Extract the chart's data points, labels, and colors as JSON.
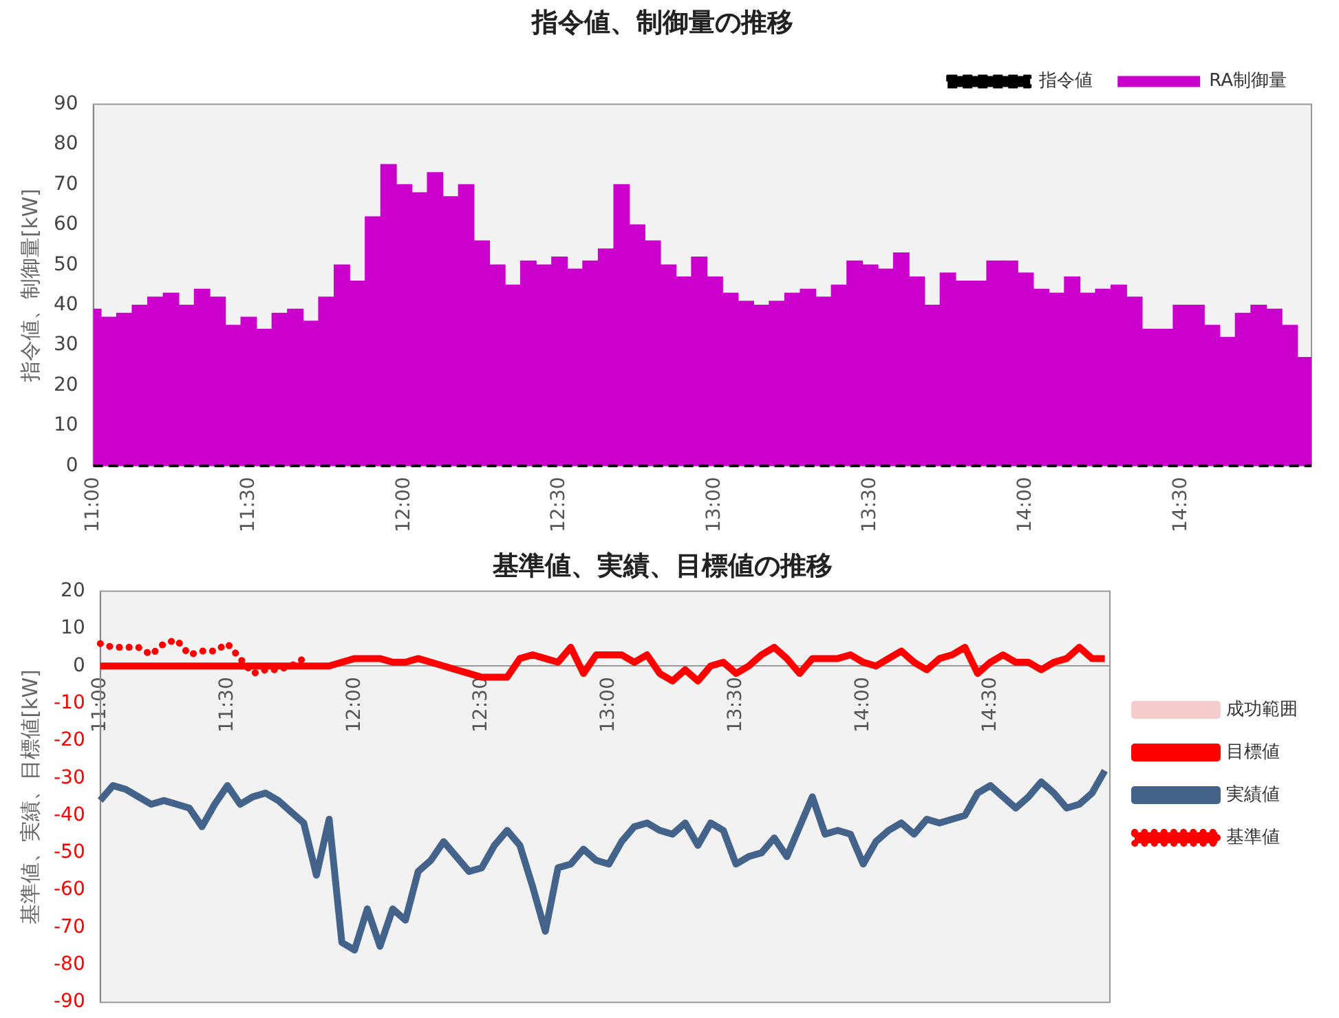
{
  "chart_data": [
    {
      "type": "bar",
      "title": "指令値、制御量の推移",
      "ylabel": "指令値、制御量[kW]",
      "legend": "top right",
      "grid": false,
      "xlim": [
        11,
        14.92
      ],
      "xticks": [
        {
          "value": 11,
          "label": "11:00"
        },
        {
          "value": 11.5,
          "label": "11:30"
        },
        {
          "value": 12,
          "label": "12:00"
        },
        {
          "value": 12.5,
          "label": "12:30"
        },
        {
          "value": 13,
          "label": "13:00"
        },
        {
          "value": 13.5,
          "label": "13:30"
        },
        {
          "value": 14,
          "label": "14:00"
        },
        {
          "value": 14.5,
          "label": "14:30"
        }
      ],
      "ylim": [
        0,
        90
      ],
      "yticks": [
        0,
        10,
        20,
        30,
        40,
        50,
        60,
        70,
        80,
        90
      ],
      "x": [
        11,
        11.05,
        11.1,
        11.15,
        11.2,
        11.25,
        11.3,
        11.35,
        11.4,
        11.45,
        11.5,
        11.55,
        11.6,
        11.65,
        11.7,
        11.75,
        11.8,
        11.85,
        11.9,
        11.95,
        12,
        12.05,
        12.1,
        12.15,
        12.2,
        12.25,
        12.3,
        12.35,
        12.4,
        12.45,
        12.5,
        12.55,
        12.6,
        12.65,
        12.7,
        12.75,
        12.8,
        12.85,
        12.9,
        12.95,
        13,
        13.05,
        13.1,
        13.15,
        13.2,
        13.25,
        13.3,
        13.35,
        13.4,
        13.45,
        13.5,
        13.55,
        13.6,
        13.65,
        13.7,
        13.75,
        13.8,
        13.85,
        13.9,
        13.95,
        14,
        14.05,
        14.1,
        14.15,
        14.2,
        14.25,
        14.3,
        14.35,
        14.4,
        14.45,
        14.5,
        14.55,
        14.6,
        14.65,
        14.7,
        14.75,
        14.8,
        14.85,
        14.9
      ],
      "series": [
        {
          "name": "指令値",
          "type": "line",
          "color": "#000000",
          "line_style": "dashed",
          "marker": "none",
          "x": [
            11,
            14.92
          ],
          "values": [
            0,
            0
          ]
        },
        {
          "name": "RA制御量",
          "type": "bar",
          "color": "#cc00cc",
          "values": [
            39,
            37,
            38,
            40,
            42,
            43,
            40,
            44,
            42,
            35,
            37,
            34,
            38,
            39,
            36,
            42,
            50,
            46,
            62,
            75,
            70,
            68,
            73,
            67,
            70,
            56,
            50,
            45,
            51,
            50,
            52,
            49,
            51,
            54,
            70,
            60,
            56,
            50,
            47,
            52,
            47,
            43,
            41,
            40,
            41,
            43,
            44,
            42,
            45,
            51,
            50,
            49,
            53,
            47,
            40,
            48,
            46,
            46,
            51,
            51,
            48,
            44,
            43,
            47,
            43,
            44,
            45,
            42,
            34,
            34,
            40,
            40,
            35,
            32,
            38,
            40,
            39,
            35,
            27
          ]
        }
      ]
    },
    {
      "type": "line",
      "title": "基準値、実績、目標値の推移",
      "ylabel": "基準値、実績、目標値[kW]",
      "legend": "right",
      "grid": false,
      "marker": "none",
      "xlim": [
        11,
        14.97
      ],
      "xticks": [
        {
          "value": 11,
          "label": "11:00"
        },
        {
          "value": 11.5,
          "label": "11:30"
        },
        {
          "value": 12,
          "label": "12:00"
        },
        {
          "value": 12.5,
          "label": "12:30"
        },
        {
          "value": 13,
          "label": "13:00"
        },
        {
          "value": 13.5,
          "label": "13:30"
        },
        {
          "value": 14,
          "label": "14:00"
        },
        {
          "value": 14.5,
          "label": "14:30"
        }
      ],
      "ylim": [
        -90,
        20
      ],
      "yticks": [
        -90,
        -80,
        -70,
        -60,
        -50,
        -40,
        -30,
        -20,
        -10,
        0,
        10,
        20
      ],
      "x": [
        11,
        11.05,
        11.1,
        11.15,
        11.2,
        11.25,
        11.3,
        11.35,
        11.4,
        11.45,
        11.5,
        11.55,
        11.6,
        11.65,
        11.7,
        11.75,
        11.8,
        11.85,
        11.9,
        11.95,
        12,
        12.05,
        12.1,
        12.15,
        12.2,
        12.25,
        12.3,
        12.35,
        12.4,
        12.45,
        12.5,
        12.55,
        12.6,
        12.65,
        12.7,
        12.75,
        12.8,
        12.85,
        12.9,
        12.95,
        13,
        13.05,
        13.1,
        13.15,
        13.2,
        13.25,
        13.3,
        13.35,
        13.4,
        13.45,
        13.5,
        13.55,
        13.6,
        13.65,
        13.7,
        13.75,
        13.8,
        13.85,
        13.9,
        13.95,
        14,
        14.05,
        14.1,
        14.15,
        14.2,
        14.25,
        14.3,
        14.35,
        14.4,
        14.45,
        14.5,
        14.55,
        14.6,
        14.65,
        14.7,
        14.75,
        14.8,
        14.85,
        14.9,
        14.95
      ],
      "series": [
        {
          "name": "成功範囲",
          "color": "#f4cccc",
          "line_style": "solid",
          "values": [
            null,
            null,
            null,
            null,
            null,
            null,
            null,
            null,
            null,
            null,
            null,
            null,
            null,
            null,
            null,
            null,
            null,
            null,
            null,
            null,
            null,
            null,
            null,
            null,
            null,
            null,
            null,
            null,
            null,
            null,
            null,
            null,
            null,
            null,
            null,
            null,
            null,
            null,
            null,
            null,
            null,
            null,
            null,
            null,
            null,
            null,
            null,
            null,
            null,
            null,
            null,
            null,
            null,
            null,
            null,
            null,
            null,
            null,
            null,
            null,
            null,
            null,
            null,
            null,
            null,
            null,
            null,
            null,
            null,
            null,
            null,
            null,
            null,
            null,
            null,
            null,
            null,
            null,
            null,
            null
          ]
        },
        {
          "name": "目標値",
          "color": "#ff0000",
          "line_style": "solid",
          "values": [
            0,
            0,
            0,
            0,
            0,
            0,
            0,
            0,
            0,
            0,
            0,
            0,
            0,
            0,
            0,
            0,
            0,
            0,
            0,
            1,
            2,
            2,
            2,
            1,
            1,
            2,
            1,
            0,
            -1,
            -2,
            -3,
            -3,
            -3,
            2,
            3,
            2,
            1,
            5,
            -2,
            3,
            3,
            3,
            1,
            3,
            -2,
            -4,
            -1,
            -4,
            0,
            1,
            -2,
            0,
            3,
            5,
            2,
            -2,
            2,
            2,
            2,
            3,
            1,
            0,
            2,
            4,
            1,
            -1,
            2,
            3,
            5,
            -2,
            1,
            3,
            1,
            1,
            -1,
            1,
            2,
            5,
            2,
            2
          ]
        },
        {
          "name": "実績値",
          "color": "#44638a",
          "line_style": "solid",
          "values": [
            -36,
            -32,
            -33,
            -35,
            -37,
            -36,
            -37,
            -38,
            -43,
            -37,
            -32,
            -37,
            -35,
            -34,
            -36,
            -39,
            -42,
            -56,
            -41,
            -74,
            -76,
            -65,
            -75,
            -65,
            -68,
            -55,
            -52,
            -47,
            -51,
            -55,
            -54,
            -48,
            -44,
            -48,
            -59,
            -71,
            -54,
            -53,
            -49,
            -52,
            -53,
            -47,
            -43,
            -42,
            -44,
            -45,
            -42,
            -48,
            -42,
            -44,
            -53,
            -51,
            -50,
            -46,
            -51,
            -43,
            -35,
            -45,
            -44,
            -45,
            -53,
            -47,
            -44,
            -42,
            -45,
            -41,
            -42,
            -41,
            -40,
            -34,
            -32,
            -35,
            -38,
            -35,
            -31,
            -34,
            -38,
            -37,
            -34,
            -28
          ]
        },
        {
          "name": "基準値",
          "color": "#ff0000",
          "line_style": "dotted",
          "x": [
            11,
            11.05,
            11.1,
            11.15,
            11.2,
            11.25,
            11.3,
            11.35,
            11.4,
            11.45,
            11.5,
            11.55,
            11.6,
            11.65,
            11.7,
            11.75,
            11.8
          ],
          "values": [
            6,
            5,
            5,
            5,
            3,
            6,
            7,
            3,
            4,
            4,
            6,
            2,
            -2,
            -1,
            -1,
            0,
            2
          ]
        }
      ]
    }
  ]
}
